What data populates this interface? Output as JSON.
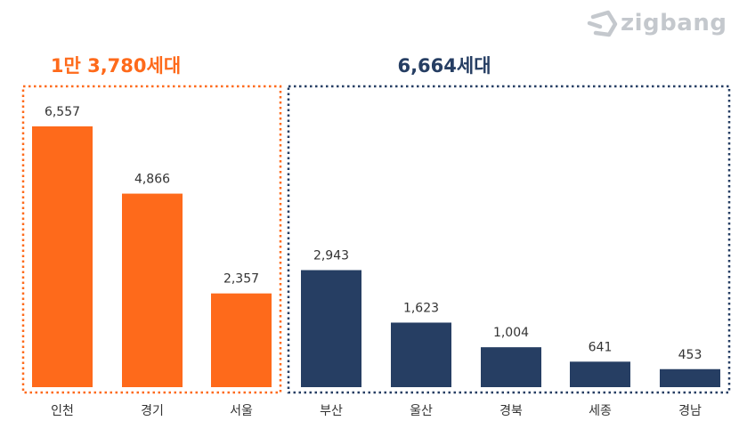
{
  "brand": {
    "name": "zigbang",
    "logo_icon": "zigbang-house-icon",
    "logo_color": "#c4c8cd"
  },
  "colors": {
    "metro": "#fe6a1b",
    "region": "#263e63"
  },
  "groups": [
    {
      "id": "metro",
      "total_label": "1만 3,780세대",
      "color": "#fe6a1b",
      "categories": [
        "인천",
        "경기",
        "서울"
      ]
    },
    {
      "id": "region",
      "total_label": "6,664세대",
      "color": "#263e63",
      "categories": [
        "부산",
        "울산",
        "경북",
        "세종",
        "경남"
      ]
    }
  ],
  "chart_data": {
    "type": "bar",
    "categories": [
      "인천",
      "경기",
      "서울",
      "부산",
      "울산",
      "경북",
      "세종",
      "경남"
    ],
    "values": [
      6557,
      4866,
      2357,
      2943,
      1623,
      1004,
      641,
      453
    ],
    "value_labels": [
      "6,557",
      "4,866",
      "2,357",
      "2,943",
      "1,623",
      "1,004",
      "641",
      "453"
    ],
    "groups": [
      "metro",
      "metro",
      "metro",
      "region",
      "region",
      "region",
      "region",
      "region"
    ],
    "title": "",
    "xlabel": "",
    "ylabel": "",
    "ylim": [
      0,
      7000
    ],
    "grid": false,
    "legend": "none"
  }
}
